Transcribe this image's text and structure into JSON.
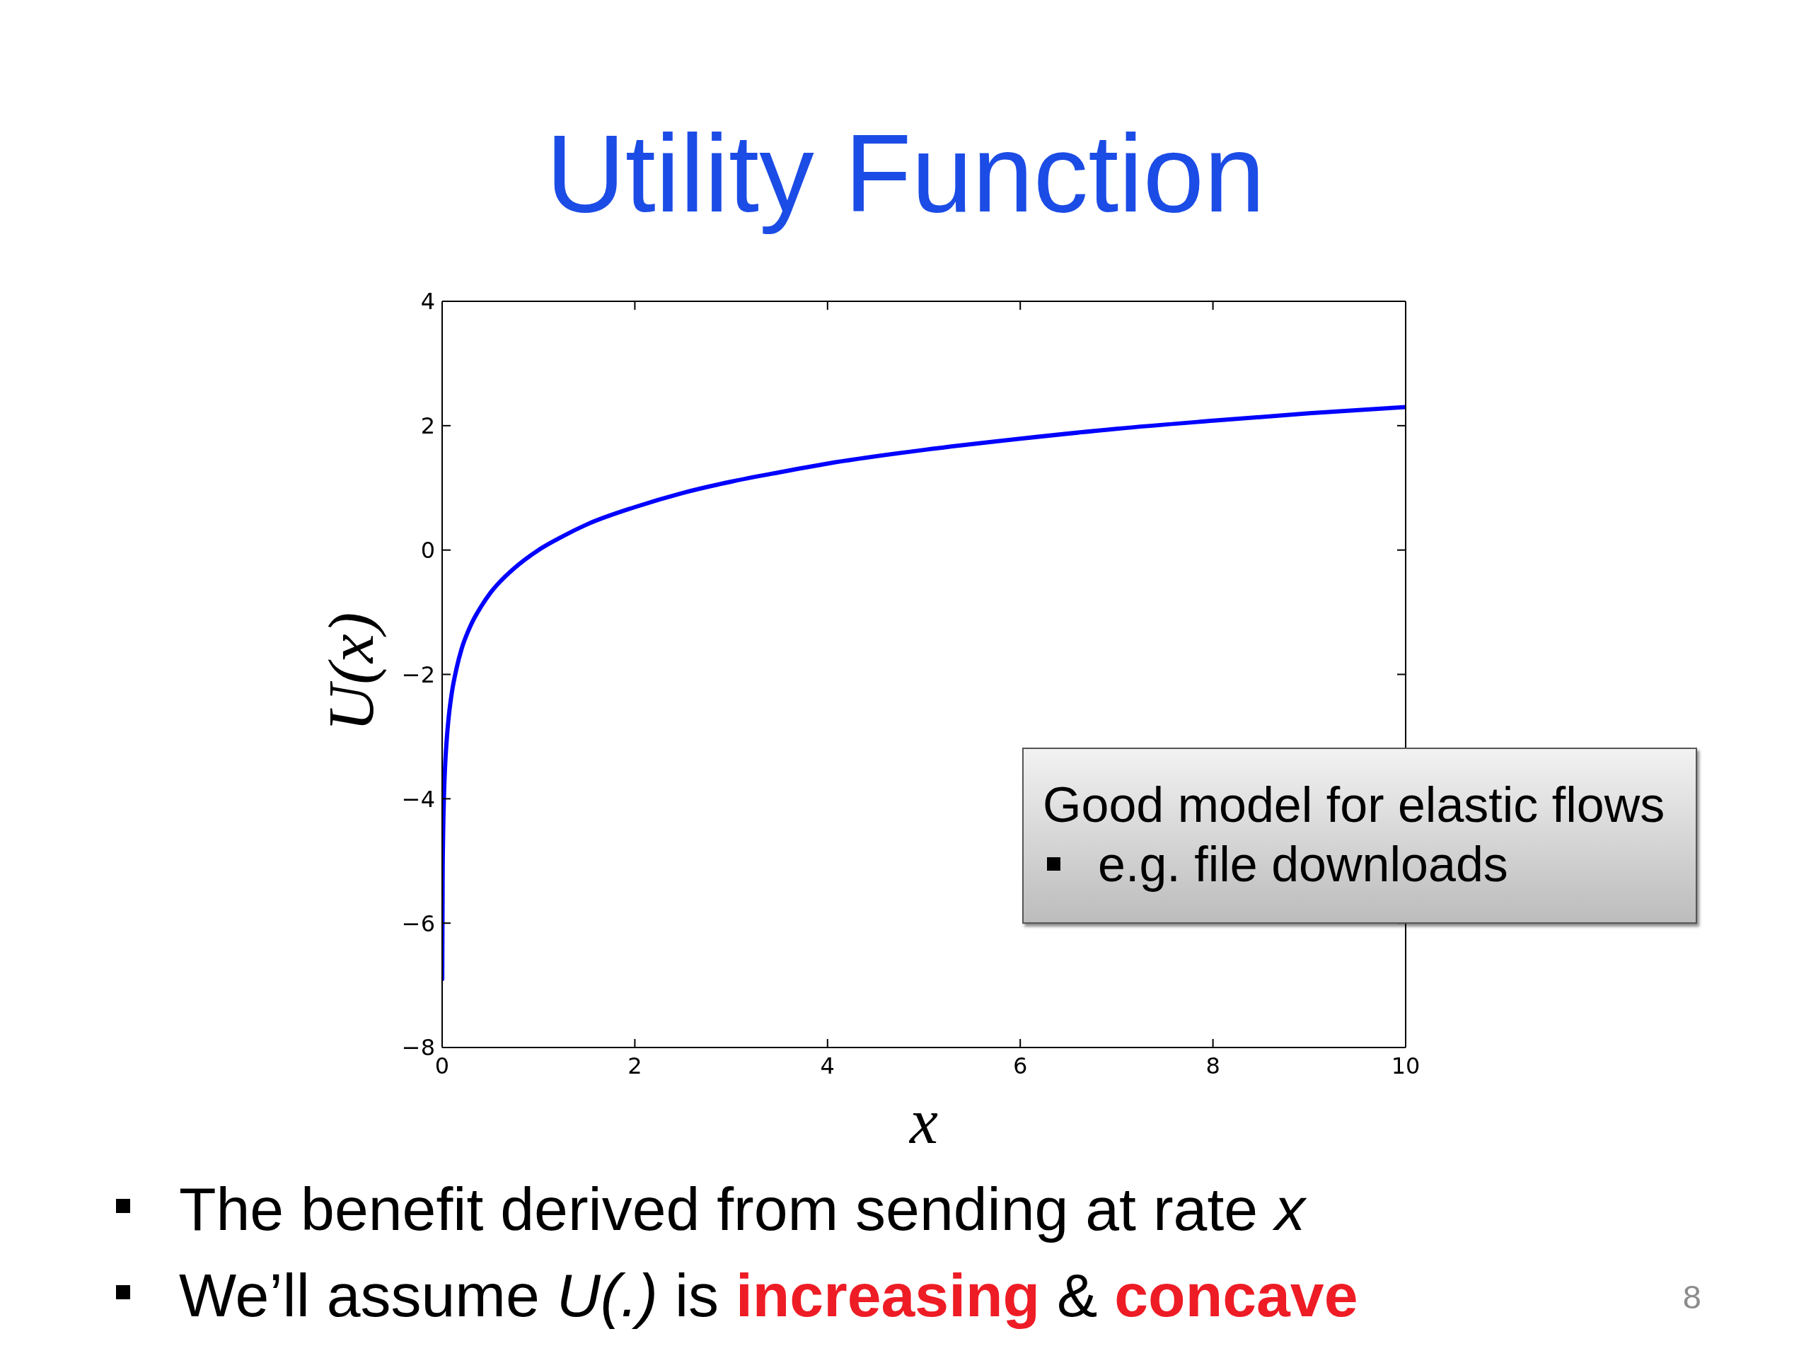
{
  "chart_data": {
    "type": "line",
    "title": "Utility Function",
    "xlabel": "x",
    "ylabel": "U(x)",
    "x": [
      0.001,
      0.005,
      0.01,
      0.02,
      0.03,
      0.05,
      0.07,
      0.1,
      0.15,
      0.2,
      0.3,
      0.4,
      0.5,
      0.6,
      0.75,
      1,
      1.25,
      1.5,
      2,
      2.5,
      3,
      3.5,
      4,
      5,
      6,
      7,
      8,
      9,
      10
    ],
    "series": [
      {
        "color": "#0000ff",
        "values": [
          -6.9,
          -5.3,
          -4.6,
          -3.9,
          -3.5,
          -3.0,
          -2.66,
          -2.3,
          -1.9,
          -1.6,
          -1.2,
          -0.92,
          -0.69,
          -0.51,
          -0.29,
          0,
          0.22,
          0.41,
          0.69,
          0.92,
          1.1,
          1.25,
          1.39,
          1.61,
          1.79,
          1.95,
          2.08,
          2.2,
          2.3
        ]
      }
    ],
    "xlim": [
      0,
      10
    ],
    "xticks": [
      0,
      2,
      4,
      6,
      8,
      10
    ],
    "ylim": [
      -8,
      4
    ],
    "yticks": [
      -8,
      -6,
      -4,
      -2,
      0,
      2,
      4
    ],
    "marker": "none",
    "line_style": "solid",
    "annotations": [
      "Good model for elastic flows",
      "e.g. file downloads",
      "The benefit derived from sending at rate x",
      "We’ll assume U(.) is increasing & concave",
      "8"
    ]
  }
}
